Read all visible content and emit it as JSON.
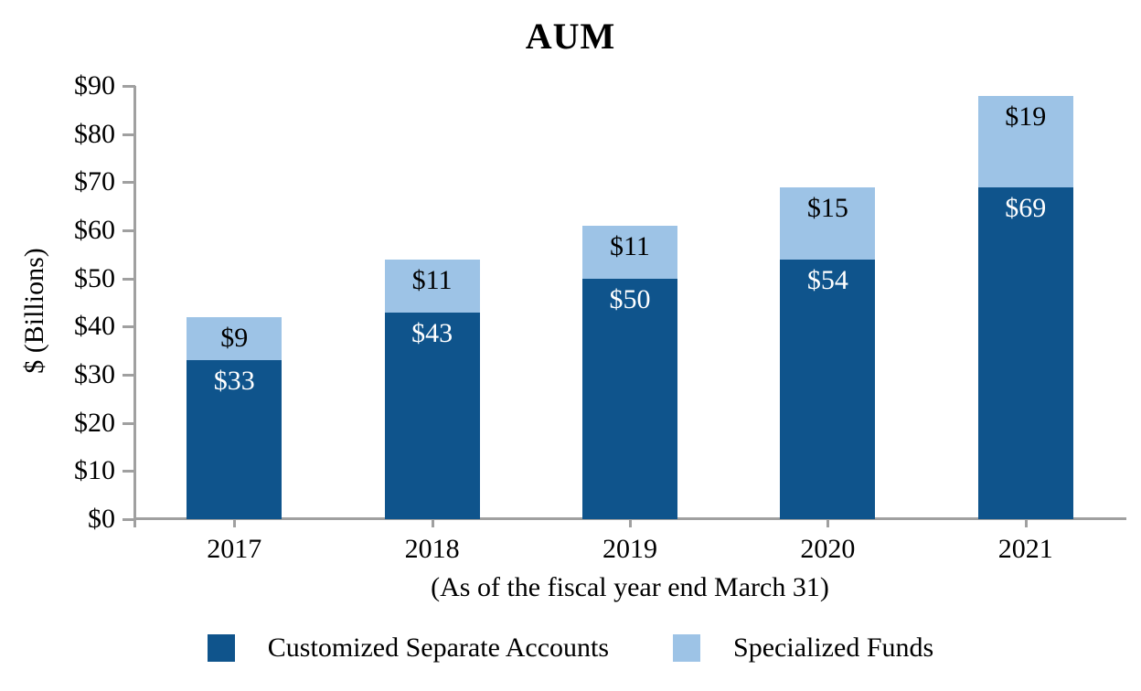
{
  "chart_data": {
    "type": "bar",
    "stacked": true,
    "title": "AUM",
    "ylabel": "$ (Billions)",
    "xlabel": "(As of the fiscal year end March 31)",
    "categories": [
      "2017",
      "2018",
      "2019",
      "2020",
      "2021"
    ],
    "series": [
      {
        "name": "Customized Separate Accounts",
        "color": "#0f548c",
        "label_color": "#ffffff",
        "values": [
          33,
          43,
          50,
          54,
          69
        ],
        "labels": [
          "$33",
          "$43",
          "$50",
          "$54",
          "$69"
        ]
      },
      {
        "name": "Specialized Funds",
        "color": "#9dc3e6",
        "label_color": "#000000",
        "values": [
          9,
          11,
          11,
          15,
          19
        ],
        "labels": [
          "$9",
          "$11",
          "$11",
          "$15",
          "$19"
        ]
      }
    ],
    "totals": [
      42,
      54,
      61,
      69,
      88
    ],
    "y_axis": {
      "min": 0,
      "max": 90,
      "step": 10,
      "tick_labels": [
        "$0",
        "$10",
        "$20",
        "$30",
        "$40",
        "$50",
        "$60",
        "$70",
        "$80",
        "$90"
      ]
    },
    "axis_color": "#a0a0a0",
    "grid": false,
    "legend_position": "bottom"
  }
}
